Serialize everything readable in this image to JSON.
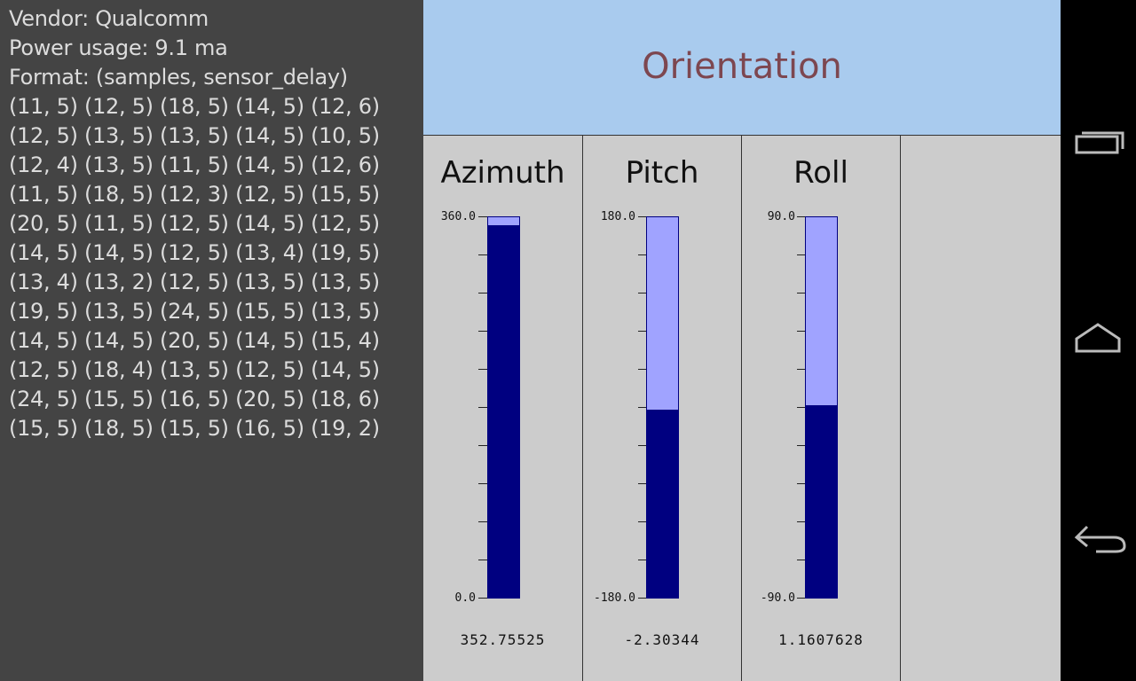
{
  "info": {
    "vendor": "Vendor: Qualcomm",
    "power": "Power usage: 9.1 ma",
    "format": "Format: (samples, sensor_delay)",
    "rows": [
      "(11, 5) (12, 5) (18, 5) (14, 5) (12, 6)",
      "(12, 5) (13, 5) (13, 5) (14, 5) (10, 5)",
      "(12, 4) (13, 5) (11, 5) (14, 5) (12, 6)",
      "(11, 5) (18, 5) (12, 3) (12, 5) (15, 5)",
      "(20, 5) (11, 5) (12, 5) (14, 5) (12, 5)",
      "(14, 5) (14, 5) (12, 5) (13, 4) (19, 5)",
      "(13, 4) (13, 2) (12, 5) (13, 5) (13, 5)",
      "(19, 5) (13, 5) (24, 5) (15, 5) (13, 5)",
      "(14, 5) (14, 5) (20, 5) (14, 5) (15, 4)",
      "(12, 5) (18, 4) (13, 5) (12, 5) (14, 5)",
      "(24, 5) (15, 5) (16, 5) (20, 5) (18, 6)",
      "(15, 5) (18, 5) (15, 5) (16, 5) (19, 2)"
    ]
  },
  "header": {
    "title": "Orientation"
  },
  "gauges": [
    {
      "name": "Azimuth",
      "min_label": "0.0",
      "max_label": "360.0",
      "min": 0,
      "max": 360,
      "value": 352.75525,
      "value_label": "352.75525"
    },
    {
      "name": "Pitch",
      "min_label": "-180.0",
      "max_label": "180.0",
      "min": -180,
      "max": 180,
      "value": -2.30344,
      "value_label": "-2.30344"
    },
    {
      "name": "Roll",
      "min_label": "-90.0",
      "max_label": "90.0",
      "min": -90,
      "max": 90,
      "value": 1.1607628,
      "value_label": "1.1607628"
    }
  ],
  "colors": {
    "gauge_fill": "#000080",
    "gauge_empty": "#a0a3ff",
    "header_bg": "#a9cbee",
    "title_color": "#7d4750",
    "left_panel_bg": "#444444"
  },
  "nav": {
    "recents_icon": "recent-apps-icon",
    "home_icon": "home-icon",
    "back_icon": "back-icon"
  }
}
